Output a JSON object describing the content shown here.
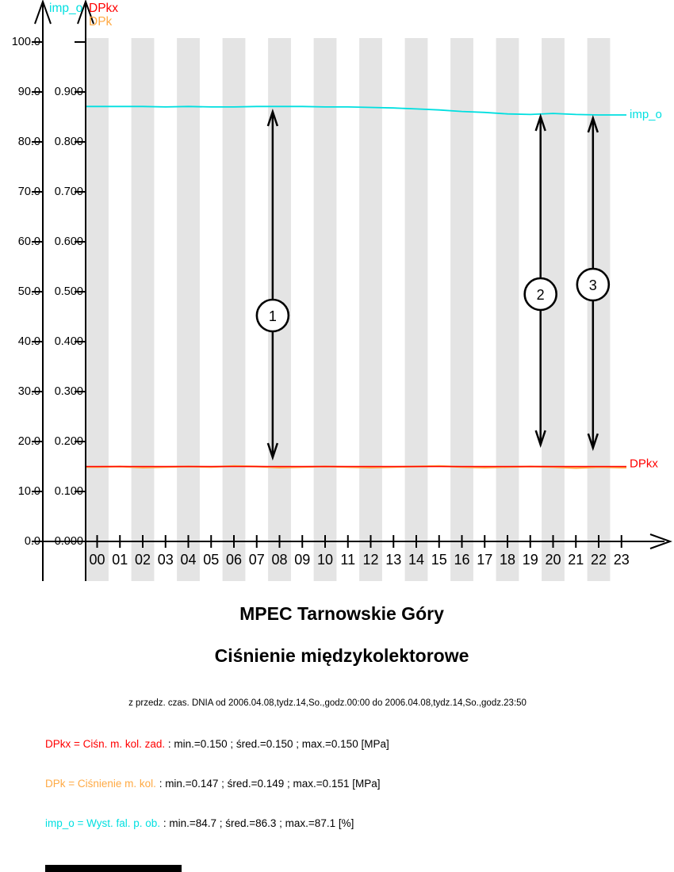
{
  "colors": {
    "cyan": "#00DFE0",
    "red": "#FF0000",
    "orange": "#FFAA44",
    "band": "#E4E4E4",
    "black": "#000000",
    "background": "#FFFFFF"
  },
  "axis_titles": {
    "left_top": "imp_o",
    "inner_top_1": "DPkx",
    "inner_top_2": "DPk"
  },
  "series_end_labels": {
    "imp_o": "imp_o",
    "DPkx": "DPkx"
  },
  "chart_data": {
    "type": "line",
    "title": "MPEC Tarnowskie Góry",
    "subtitle": "Ciśnienie międzykolektorowe",
    "x_label_hours": [
      "00",
      "01",
      "02",
      "03",
      "04",
      "05",
      "06",
      "07",
      "08",
      "09",
      "10",
      "11",
      "12",
      "13",
      "14",
      "15",
      "16",
      "17",
      "18",
      "19",
      "20",
      "21",
      "22",
      "23"
    ],
    "shaded_hours": [
      0,
      2,
      4,
      6,
      8,
      10,
      12,
      14,
      16,
      18,
      20,
      22
    ],
    "left_axis": {
      "label": "imp_o",
      "unit": "%",
      "range": [
        0,
        100
      ],
      "ticks": [
        "0.0",
        "10.0",
        "20.0",
        "30.0",
        "40.0",
        "50.0",
        "60.0",
        "70.0",
        "80.0",
        "90.0",
        "100.0"
      ]
    },
    "inner_axis": {
      "labels": [
        "DPkx",
        "DPk"
      ],
      "unit": "MPa",
      "range": [
        0,
        1
      ],
      "ticks": [
        "0.000",
        "0.100",
        "0.200",
        "0.300",
        "0.400",
        "0.500",
        "0.600",
        "0.700",
        "0.800",
        "0.900"
      ]
    },
    "series": [
      {
        "name": "DPk",
        "color_key": "orange",
        "unit": "MPa",
        "stats": {
          "min": 0.147,
          "sred": 0.149,
          "max": 0.151
        },
        "values": [
          0.149,
          0.15,
          0.148,
          0.149,
          0.15,
          0.149,
          0.151,
          0.15,
          0.148,
          0.149,
          0.15,
          0.149,
          0.148,
          0.149,
          0.15,
          0.151,
          0.149,
          0.148,
          0.149,
          0.15,
          0.149,
          0.147,
          0.149,
          0.148
        ]
      },
      {
        "name": "DPkx",
        "color_key": "red",
        "unit": "MPa",
        "stats": {
          "min": 0.15,
          "sred": 0.15,
          "max": 0.15
        },
        "values": [
          0.15,
          0.15,
          0.15,
          0.15,
          0.15,
          0.15,
          0.15,
          0.15,
          0.15,
          0.15,
          0.15,
          0.15,
          0.15,
          0.15,
          0.15,
          0.15,
          0.15,
          0.15,
          0.15,
          0.15,
          0.15,
          0.15,
          0.15,
          0.15
        ]
      },
      {
        "name": "imp_o",
        "color_key": "cyan",
        "unit": "%",
        "stats": {
          "min": 84.7,
          "sred": 86.3,
          "max": 87.1
        },
        "values": [
          87.1,
          87.1,
          87.1,
          87.0,
          87.1,
          87.0,
          87.0,
          87.1,
          87.1,
          87.1,
          87.0,
          87.0,
          86.9,
          86.8,
          86.6,
          86.4,
          86.1,
          85.9,
          85.6,
          85.5,
          85.7,
          85.5,
          85.4,
          85.4
        ]
      }
    ],
    "annotations": [
      {
        "label": "1",
        "hour": 7.7,
        "y_top": 140,
        "y_bottom": 578,
        "circle_y": 398
      },
      {
        "label": "2",
        "hour": 19.45,
        "y_top": 146,
        "y_bottom": 562,
        "circle_y": 371
      },
      {
        "label": "3",
        "hour": 21.75,
        "y_top": 148,
        "y_bottom": 566,
        "circle_y": 359
      }
    ]
  },
  "titles": {
    "main": "MPEC Tarnowskie Góry",
    "sub": "Ciśnienie międzykolektorowe",
    "period": "z przedz. czas. DNIA od 2006.04.08,tydz.14,So.,godz.00:00 do 2006.04.08,tydz.14,So.,godz.23:50"
  },
  "legend": {
    "rows": [
      {
        "name": "DPkx",
        "color_key": "red",
        "colored": "DPkx = Ciśn. m. kol. zad.",
        "stats": " : min.=0.150 ; śred.=0.150 ; max.=0.150 [MPa]"
      },
      {
        "name": "DPk",
        "color_key": "orange",
        "colored": "DPk = Ciśnienie m. kol.",
        "stats": " : min.=0.147 ; śred.=0.149 ; max.=0.151 [MPa]"
      },
      {
        "name": "imp_o",
        "color_key": "cyan",
        "colored": "imp_o = Wyst. fal. p. ob.",
        "stats": " : min.=84.7 ; śred.=86.3 ; max.=87.1 [%]"
      }
    ]
  }
}
